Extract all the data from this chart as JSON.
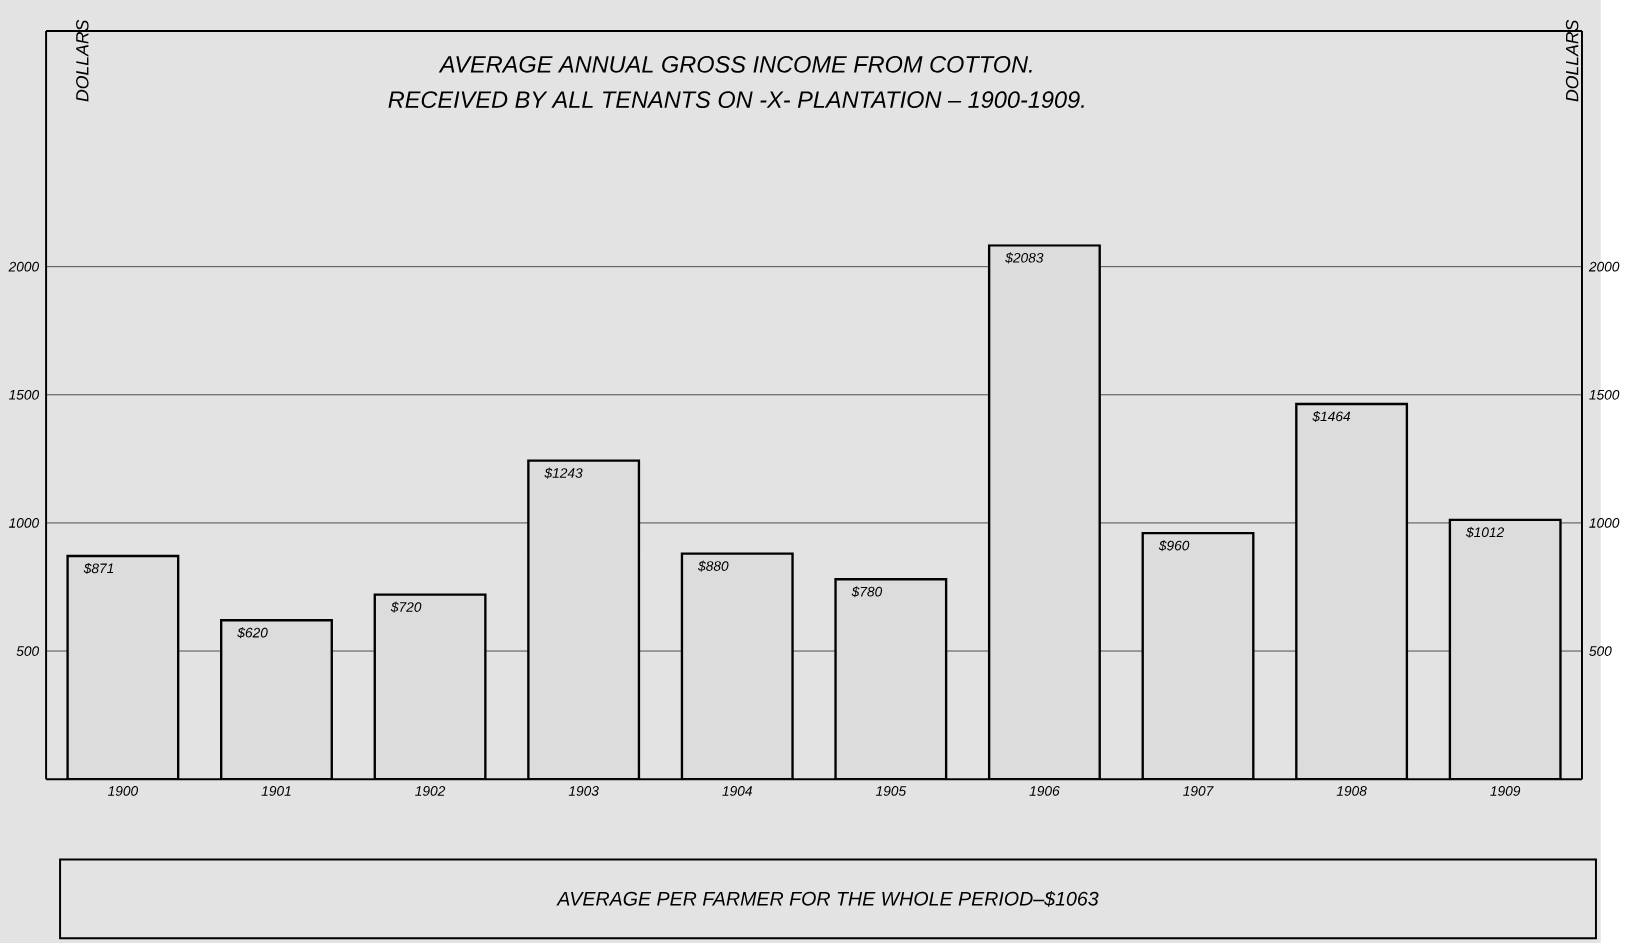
{
  "chart_data": {
    "type": "bar",
    "title": "AVERAGE ANNUAL GROSS INCOME FROM COTTON.",
    "subtitle": "RECEIVED BY ALL TENANTS ON -X- PLANTATION – 1900-1909.",
    "ylabel": "DOLLARS",
    "y2label": "DOLLARS",
    "categories": [
      "1900",
      "1901",
      "1902",
      "1903",
      "1904",
      "1905",
      "1906",
      "1907",
      "1908",
      "1909"
    ],
    "values": [
      871,
      620,
      720,
      1243,
      880,
      780,
      2083,
      960,
      1464,
      1012
    ],
    "value_labels": [
      "$871",
      "$620",
      "$720",
      "$1243",
      "$880",
      "$780",
      "$2083",
      "$960",
      "$1464",
      "$1012"
    ],
    "color": "#dcdcdc",
    "ylim": [
      0,
      2920
    ],
    "yticks": [
      500,
      1000,
      1500,
      2000
    ],
    "y2lim": [
      0,
      2920
    ],
    "y2ticks": [
      500,
      1000,
      1500,
      2000
    ],
    "grid": "y",
    "annotations": [
      "AVERAGE PER FARMER FOR THE WHOLE PERIOD–$1063"
    ]
  }
}
